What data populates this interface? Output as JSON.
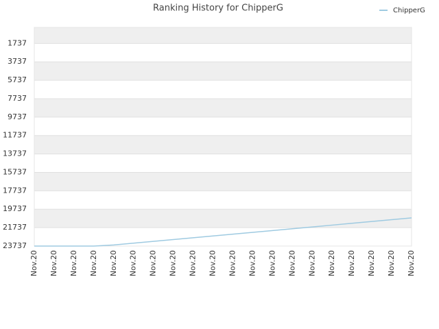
{
  "chart_data": {
    "type": "line",
    "title": "Ranking History for ChipperG",
    "categories": [
      "Nov.20",
      "Nov.20",
      "Nov.20",
      "Nov.20",
      "Nov.20",
      "Nov.20",
      "Nov.20",
      "Nov.20",
      "Nov.20",
      "Nov.20",
      "Nov.20",
      "Nov.20",
      "Nov.20",
      "Nov.20",
      "Nov.20",
      "Nov.20",
      "Nov.20",
      "Nov.20",
      "Nov.20",
      "Nov.20"
    ],
    "series": [
      {
        "name": "ChipperG",
        "color": "#9ecae1",
        "values": [
          23737,
          23737,
          23737,
          23737,
          23619,
          23423,
          23227,
          23031,
          22835,
          22639,
          22443,
          22247,
          22051,
          21855,
          21659,
          21463,
          21267,
          21071,
          20875,
          20679
        ]
      }
    ],
    "ylim": [
      23737,
      0
    ],
    "yticks": [
      1737,
      3737,
      5737,
      7737,
      9737,
      11737,
      13737,
      15737,
      17737,
      19737,
      21737,
      23737
    ],
    "grid": true,
    "legend": "top-right"
  }
}
